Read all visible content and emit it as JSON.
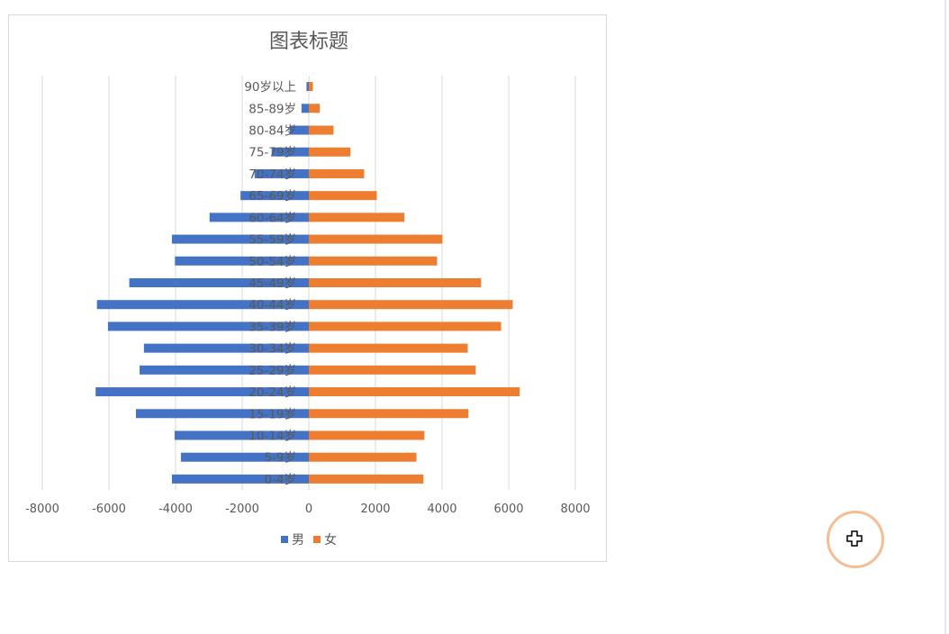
{
  "chart_data": {
    "type": "bar",
    "orientation": "horizontal",
    "title": "图表标题",
    "xlabel": "",
    "ylabel": "",
    "xlim": [
      -8000,
      8000
    ],
    "xticks": [
      -8000,
      -6000,
      -4000,
      -2000,
      0,
      2000,
      4000,
      6000,
      8000
    ],
    "grid": true,
    "legend_position": "bottom",
    "categories": [
      "90岁以上",
      "85-89岁",
      "80-84岁",
      "75-79岁",
      "70-74岁",
      "65-69岁",
      "60-64岁",
      "55-59岁",
      "50-54岁",
      "45-49岁",
      "40-44岁",
      "35-39岁",
      "30-34岁",
      "25-29岁",
      "20-24岁",
      "15-19岁",
      "10-14岁",
      "5-9岁",
      "0-4岁"
    ],
    "series": [
      {
        "name": "男",
        "color": "#4472c4",
        "values": [
          -70,
          -220,
          -575,
          -1115,
          -1630,
          -2050,
          -2980,
          -4110,
          -4020,
          -5390,
          -6360,
          -6030,
          -4950,
          -5080,
          -6400,
          -5190,
          -4030,
          -3840,
          -4110
        ]
      },
      {
        "name": "女",
        "color": "#ed7d31",
        "values": [
          120,
          330,
          740,
          1250,
          1660,
          2040,
          2870,
          4010,
          3850,
          5170,
          6120,
          5770,
          4770,
          5010,
          6330,
          4790,
          3470,
          3230,
          3440
        ]
      }
    ]
  }
}
